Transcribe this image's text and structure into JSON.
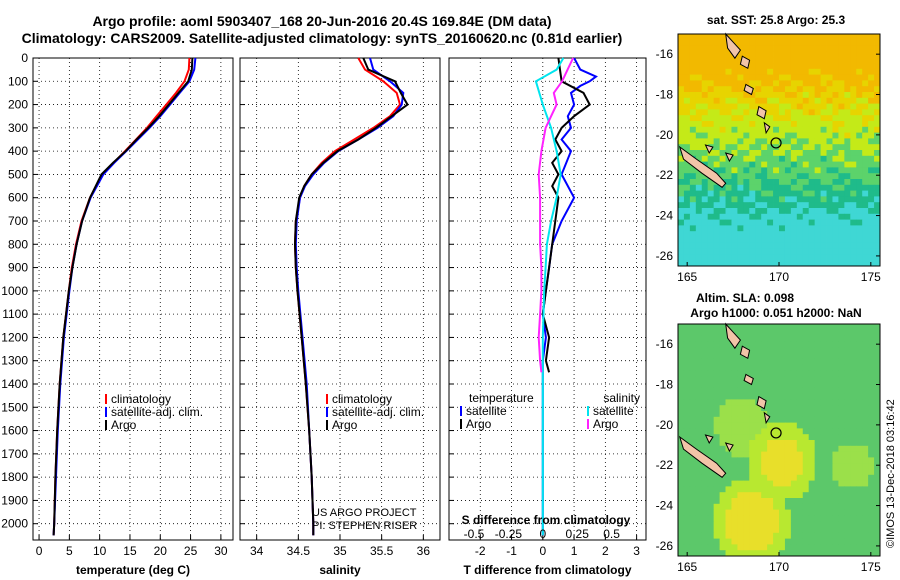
{
  "header": {
    "title_line1": "Argo profile: aoml 5903407_168 20-Jun-2016 20.4S 169.84E (DM data)",
    "title_line2": "Climatology: CARS2009. Satellite-adjusted climatology: synTS_20160620.nc (0.81d earlier)"
  },
  "colors": {
    "climatology": "#ff0000",
    "satellite": "#0000ff",
    "argo": "#000000",
    "sat_sal": "#00e5ee",
    "argo_sal": "#ff22ff"
  },
  "chart_data": [
    {
      "type": "line",
      "id": "temperature",
      "xlabel": "temperature (deg C)",
      "xlim": [
        -1,
        32
      ],
      "xticks": [
        0,
        5,
        10,
        15,
        20,
        25,
        30
      ],
      "ylim": [
        2070,
        0
      ],
      "yticks": [
        0,
        100,
        200,
        300,
        400,
        500,
        600,
        700,
        800,
        900,
        1000,
        1100,
        1200,
        1300,
        1400,
        1500,
        1600,
        1700,
        1800,
        1900,
        2000
      ],
      "legend": [
        "climatology",
        "satellite-adj. clim.",
        "Argo"
      ],
      "depth": [
        0,
        50,
        100,
        150,
        200,
        250,
        300,
        350,
        400,
        450,
        500,
        600,
        700,
        800,
        900,
        1000,
        1200,
        1400,
        1600,
        1800,
        2000,
        2050
      ],
      "series": [
        {
          "name": "climatology",
          "color": "#ff0000",
          "values": [
            24.8,
            24.7,
            24.0,
            22.6,
            21.0,
            19.4,
            17.8,
            16.0,
            14.2,
            12.3,
            10.5,
            8.4,
            7.0,
            6.1,
            5.4,
            4.9,
            4.0,
            3.4,
            3.0,
            2.7,
            2.5,
            2.4
          ]
        },
        {
          "name": "satellite-adj. clim.",
          "color": "#0000ff",
          "values": [
            25.8,
            25.6,
            24.8,
            23.2,
            21.6,
            20.0,
            18.2,
            16.3,
            14.4,
            12.4,
            10.6,
            8.5,
            7.1,
            6.2,
            5.5,
            5.0,
            4.1,
            3.5,
            3.1,
            2.8,
            2.5,
            2.4
          ]
        },
        {
          "name": "Argo",
          "color": "#000000",
          "values": [
            25.3,
            25.2,
            24.6,
            23.0,
            21.4,
            19.8,
            18.0,
            16.1,
            14.3,
            12.2,
            10.3,
            8.4,
            7.1,
            6.2,
            5.5,
            4.9,
            4.0,
            3.4,
            3.0,
            2.7,
            2.5,
            2.4
          ]
        }
      ]
    },
    {
      "type": "line",
      "id": "salinity",
      "xlabel": "salinity",
      "xlim": [
        33.8,
        36.2
      ],
      "xticks": [
        34,
        34.5,
        35,
        35.5,
        36
      ],
      "xtick_labels": [
        "34",
        "34.5",
        "35",
        "35.5",
        "36"
      ],
      "ylim": [
        2070,
        0
      ],
      "legend": [
        "climatology",
        "satellite-adj. clim.",
        "Argo"
      ],
      "annotation": [
        "US ARGO PROJECT",
        "PI: STEPHEN RISER"
      ],
      "depth": [
        0,
        50,
        100,
        150,
        200,
        250,
        300,
        350,
        400,
        450,
        500,
        550,
        600,
        700,
        800,
        900,
        1000,
        1200,
        1400,
        1600,
        1800,
        2000,
        2050
      ],
      "series": [
        {
          "name": "climatology",
          "color": "#ff0000",
          "values": [
            35.22,
            35.3,
            35.52,
            35.68,
            35.72,
            35.6,
            35.4,
            35.17,
            34.94,
            34.78,
            34.66,
            34.57,
            34.52,
            34.47,
            34.46,
            34.47,
            34.49,
            34.54,
            34.59,
            34.63,
            34.66,
            34.68,
            34.68
          ]
        },
        {
          "name": "satellite-adj. clim.",
          "color": "#0000ff",
          "values": [
            35.36,
            35.4,
            35.6,
            35.76,
            35.74,
            35.64,
            35.45,
            35.22,
            34.98,
            34.81,
            34.68,
            34.58,
            34.52,
            34.48,
            34.47,
            34.48,
            34.5,
            34.55,
            34.6,
            34.63,
            34.66,
            34.68,
            34.68
          ]
        },
        {
          "name": "Argo",
          "color": "#000000",
          "values": [
            35.28,
            35.34,
            35.66,
            35.73,
            35.81,
            35.62,
            35.43,
            35.22,
            34.97,
            34.8,
            34.66,
            34.57,
            34.51,
            34.47,
            34.46,
            34.47,
            34.49,
            34.54,
            34.59,
            34.63,
            34.66,
            34.68,
            34.68
          ]
        }
      ]
    },
    {
      "type": "line",
      "id": "difference",
      "xlabel": "T difference from climatology",
      "xlabel_top": "S difference from climatology",
      "xlim": [
        -3,
        3.3
      ],
      "xticks": [
        -2,
        -1,
        0,
        1,
        2,
        3
      ],
      "sticks": [
        -0.5,
        -0.25,
        0,
        0.25,
        0.5
      ],
      "stick_labels": [
        "-0.5",
        "-0.25",
        "0",
        "0.25",
        "0.5"
      ],
      "ylim": [
        2070,
        0
      ],
      "legend_temperature": [
        "temperature",
        "satellite",
        "Argo"
      ],
      "legend_salinity": [
        "salinity",
        "satellite",
        "Argo"
      ],
      "series": [
        {
          "name": "temperature satellite",
          "color": "#0000ff",
          "depth": [
            0,
            50,
            80,
            100,
            120,
            150,
            200,
            250,
            300,
            350,
            400,
            500,
            600,
            700,
            800,
            900,
            1000,
            1100,
            1200,
            1300,
            1400,
            1600,
            2000,
            2050
          ],
          "values": [
            1.0,
            1.2,
            1.7,
            1.5,
            1.2,
            0.9,
            1.0,
            0.8,
            0.9,
            0.6,
            0.9,
            0.6,
            1.0,
            0.6,
            0.3,
            0.2,
            0.1,
            0.0,
            0.1,
            0.0,
            0.0,
            0.0,
            0.0,
            0.0
          ]
        },
        {
          "name": "temperature Argo",
          "color": "#000000",
          "depth": [
            0,
            100,
            150,
            200,
            250,
            300,
            350,
            400,
            450,
            500,
            550,
            600,
            700,
            800,
            900,
            1000,
            1100,
            1200,
            1300,
            1350
          ],
          "values": [
            0.5,
            0.6,
            1.3,
            1.5,
            1.0,
            0.6,
            0.4,
            0.6,
            0.3,
            0.5,
            0.3,
            0.5,
            0.4,
            0.3,
            0.2,
            0.1,
            0.0,
            0.2,
            0.1,
            0.2
          ]
        },
        {
          "name": "salinity satellite",
          "color": "#00e5ee",
          "depth": [
            0,
            50,
            100,
            200,
            300,
            400,
            500,
            600,
            700,
            800,
            900,
            1000,
            1200,
            1400,
            1600,
            1800,
            2000,
            2050
          ],
          "values": [
            0.15,
            0.1,
            -0.05,
            0.0,
            0.06,
            0.1,
            0.13,
            0.1,
            0.06,
            0.03,
            0.02,
            0.01,
            0.0,
            0.0,
            0.0,
            0.0,
            0.0,
            0.0
          ]
        },
        {
          "name": "salinity Argo",
          "color": "#ff22ff",
          "depth": [
            0,
            50,
            100,
            150,
            200,
            250,
            300,
            400,
            500,
            600,
            700,
            800,
            900,
            1000,
            1100,
            1200,
            1300,
            1350
          ],
          "values": [
            0.22,
            0.18,
            0.14,
            0.08,
            0.1,
            0.06,
            0.02,
            -0.01,
            -0.03,
            -0.02,
            -0.02,
            -0.02,
            -0.01,
            -0.01,
            -0.02,
            -0.03,
            -0.02,
            -0.01
          ]
        }
      ]
    },
    {
      "type": "heatmap",
      "id": "sst-map",
      "title": "sat. SST: 25.8 Argo: 25.3",
      "xlim": [
        164.5,
        175.5
      ],
      "ylim": [
        -26.5,
        -15
      ],
      "xticks": [
        165,
        170,
        175
      ],
      "yticks": [
        -16,
        -18,
        -20,
        -22,
        -24,
        -26
      ],
      "profile_location": [
        169.84,
        -20.4
      ]
    },
    {
      "type": "heatmap",
      "id": "sla-map",
      "title_line1": "Altim. SLA: 0.098",
      "title_line2": "Argo h1000: 0.051 h2000: NaN",
      "xlim": [
        164.5,
        175.5
      ],
      "ylim": [
        -26.5,
        -15
      ],
      "xticks": [
        165,
        170,
        175
      ],
      "yticks": [
        -16,
        -18,
        -20,
        -22,
        -24,
        -26
      ],
      "profile_location": [
        169.84,
        -20.4
      ]
    }
  ],
  "credit": "©IMOS 13-Dec-2018 03:16:42"
}
